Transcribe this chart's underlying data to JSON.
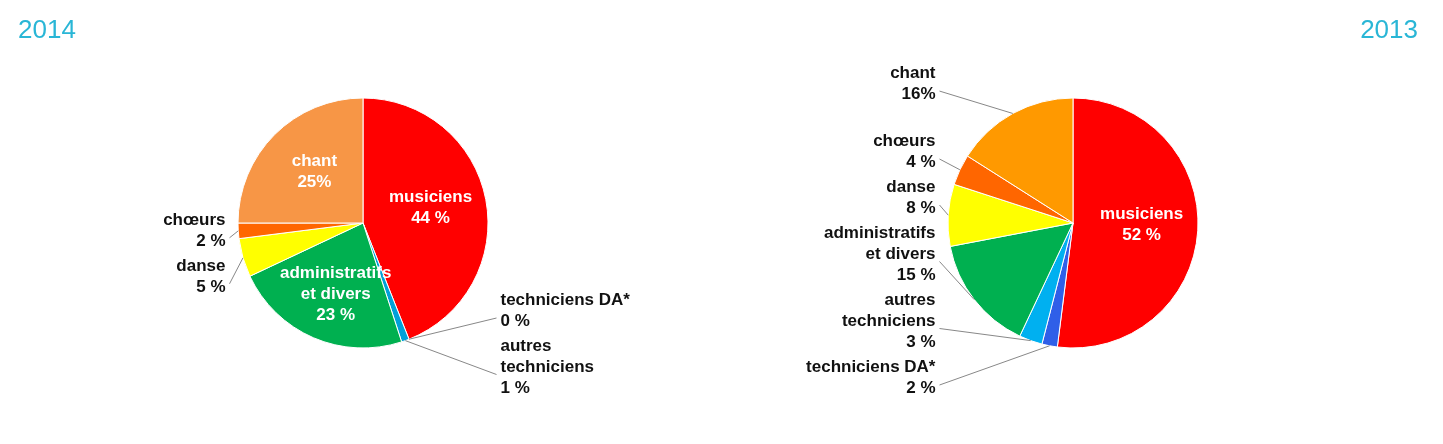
{
  "chart_data": [
    {
      "type": "pie",
      "title": "2014",
      "categories": [
        "musiciens",
        "techniciens DA*",
        "autres techniciens",
        "administratifs et divers",
        "danse",
        "chœurs",
        "chant"
      ],
      "values": [
        44,
        0,
        1,
        23,
        5,
        2,
        25
      ],
      "value_labels": [
        "44 %",
        "0 %",
        "1 %",
        "23 %",
        "5 %",
        "2 %",
        "25%"
      ],
      "colors": [
        "#ff0000",
        "#1f3fbf",
        "#00a0d8",
        "#00b050",
        "#ffff00",
        "#ff6600",
        "#f79646"
      ],
      "legend": false
    },
    {
      "type": "pie",
      "title": "2013",
      "categories": [
        "musiciens",
        "techniciens DA*",
        "autres techniciens",
        "administratifs et divers",
        "danse",
        "chœurs",
        "chant"
      ],
      "values": [
        52,
        2,
        3,
        15,
        8,
        4,
        16
      ],
      "value_labels": [
        "52 %",
        "2 %",
        "3 %",
        "15 %",
        "8 %",
        "4 %",
        "16%"
      ],
      "colors": [
        "#ff0000",
        "#2f5fe8",
        "#00b0f0",
        "#00b050",
        "#ffff00",
        "#ff6600",
        "#ff9900"
      ],
      "legend": false
    }
  ]
}
